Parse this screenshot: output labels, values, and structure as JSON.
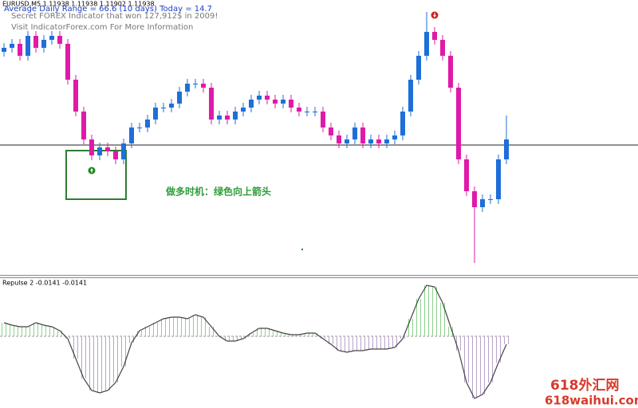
{
  "header": {
    "symbol_line": "EURUSD,M5  1.11938 1.11938 1.11902 1.11938",
    "range_line": "Average Daily Range = 66.6 (10 days)    Today = 14.7",
    "promo_line": "Secret FOREX Indicator that won 127,912$ in 2009!",
    "visit_line": "Visit IndicatorForex.com For More Information"
  },
  "annotation": "做多时机：绿色向上箭头",
  "watermark": {
    "name": "618外汇网",
    "url": "618waihui.com"
  },
  "chart_data": [
    {
      "type": "candlestick",
      "up_color": "#1e6fd9",
      "down_color": "#e01aa8",
      "ylim": [
        0,
        345
      ],
      "open": [
        280,
        285,
        290,
        275,
        300,
        285,
        295,
        300,
        290,
        245,
        205,
        170,
        150,
        160,
        155,
        145,
        165,
        185,
        185,
        195,
        210,
        210,
        215,
        230,
        240,
        240,
        235,
        195,
        200,
        195,
        205,
        210,
        220,
        225,
        220,
        215,
        220,
        210,
        205,
        205,
        205,
        185,
        175,
        165,
        170,
        185,
        165,
        170,
        165,
        170,
        175,
        205,
        245,
        275,
        305,
        295,
        275,
        235,
        145,
        105,
        85,
        95,
        95,
        145
      ],
      "high": [
        291,
        296,
        296,
        306,
        306,
        301,
        306,
        306,
        296,
        251,
        211,
        176,
        166,
        166,
        161,
        171,
        191,
        191,
        201,
        216,
        216,
        221,
        236,
        246,
        246,
        246,
        241,
        206,
        206,
        211,
        216,
        226,
        231,
        231,
        226,
        226,
        226,
        216,
        211,
        211,
        211,
        191,
        181,
        176,
        191,
        191,
        176,
        176,
        176,
        181,
        211,
        251,
        281,
        330,
        311,
        301,
        281,
        241,
        151,
        111,
        101,
        101,
        151,
        200
      ],
      "low": [
        274,
        279,
        269,
        269,
        279,
        279,
        289,
        284,
        239,
        199,
        164,
        144,
        144,
        149,
        139,
        139,
        159,
        179,
        179,
        189,
        204,
        204,
        209,
        224,
        234,
        229,
        189,
        189,
        189,
        189,
        199,
        204,
        214,
        214,
        209,
        209,
        204,
        199,
        199,
        199,
        179,
        169,
        159,
        159,
        164,
        159,
        159,
        159,
        159,
        164,
        169,
        199,
        239,
        269,
        289,
        269,
        229,
        139,
        99,
        15,
        79,
        89,
        89,
        139
      ],
      "close": [
        285,
        290,
        275,
        300,
        285,
        295,
        300,
        290,
        245,
        205,
        170,
        150,
        160,
        155,
        145,
        165,
        185,
        185,
        195,
        210,
        210,
        215,
        230,
        240,
        240,
        235,
        195,
        200,
        195,
        205,
        210,
        220,
        225,
        220,
        215,
        220,
        210,
        205,
        205,
        205,
        185,
        175,
        165,
        170,
        185,
        165,
        170,
        165,
        170,
        175,
        205,
        245,
        275,
        305,
        295,
        275,
        235,
        145,
        105,
        85,
        95,
        95,
        145,
        170
      ]
    },
    {
      "type": "oscillator",
      "title": "Repulse 2 -0.0141 -0.0141",
      "ylim": [
        -90,
        74
      ],
      "color": "#444444",
      "positive_color": "#8fd18f",
      "negative_color": "#b9a3c9",
      "values": [
        17,
        14,
        12,
        12,
        17,
        14,
        12,
        7,
        -3,
        -28,
        -53,
        -68,
        -71,
        -68,
        -58,
        -38,
        -8,
        7,
        12,
        17,
        22,
        24,
        24,
        22,
        27,
        24,
        12,
        0,
        -6,
        -6,
        -3,
        4,
        10,
        10,
        7,
        4,
        2,
        2,
        4,
        4,
        -3,
        -10,
        -18,
        -20,
        -18,
        -18,
        -16,
        -16,
        -16,
        -14,
        -3,
        22,
        47,
        64,
        62,
        42,
        12,
        -18,
        -58,
        -78,
        -73,
        -58,
        -33,
        -10
      ]
    }
  ]
}
